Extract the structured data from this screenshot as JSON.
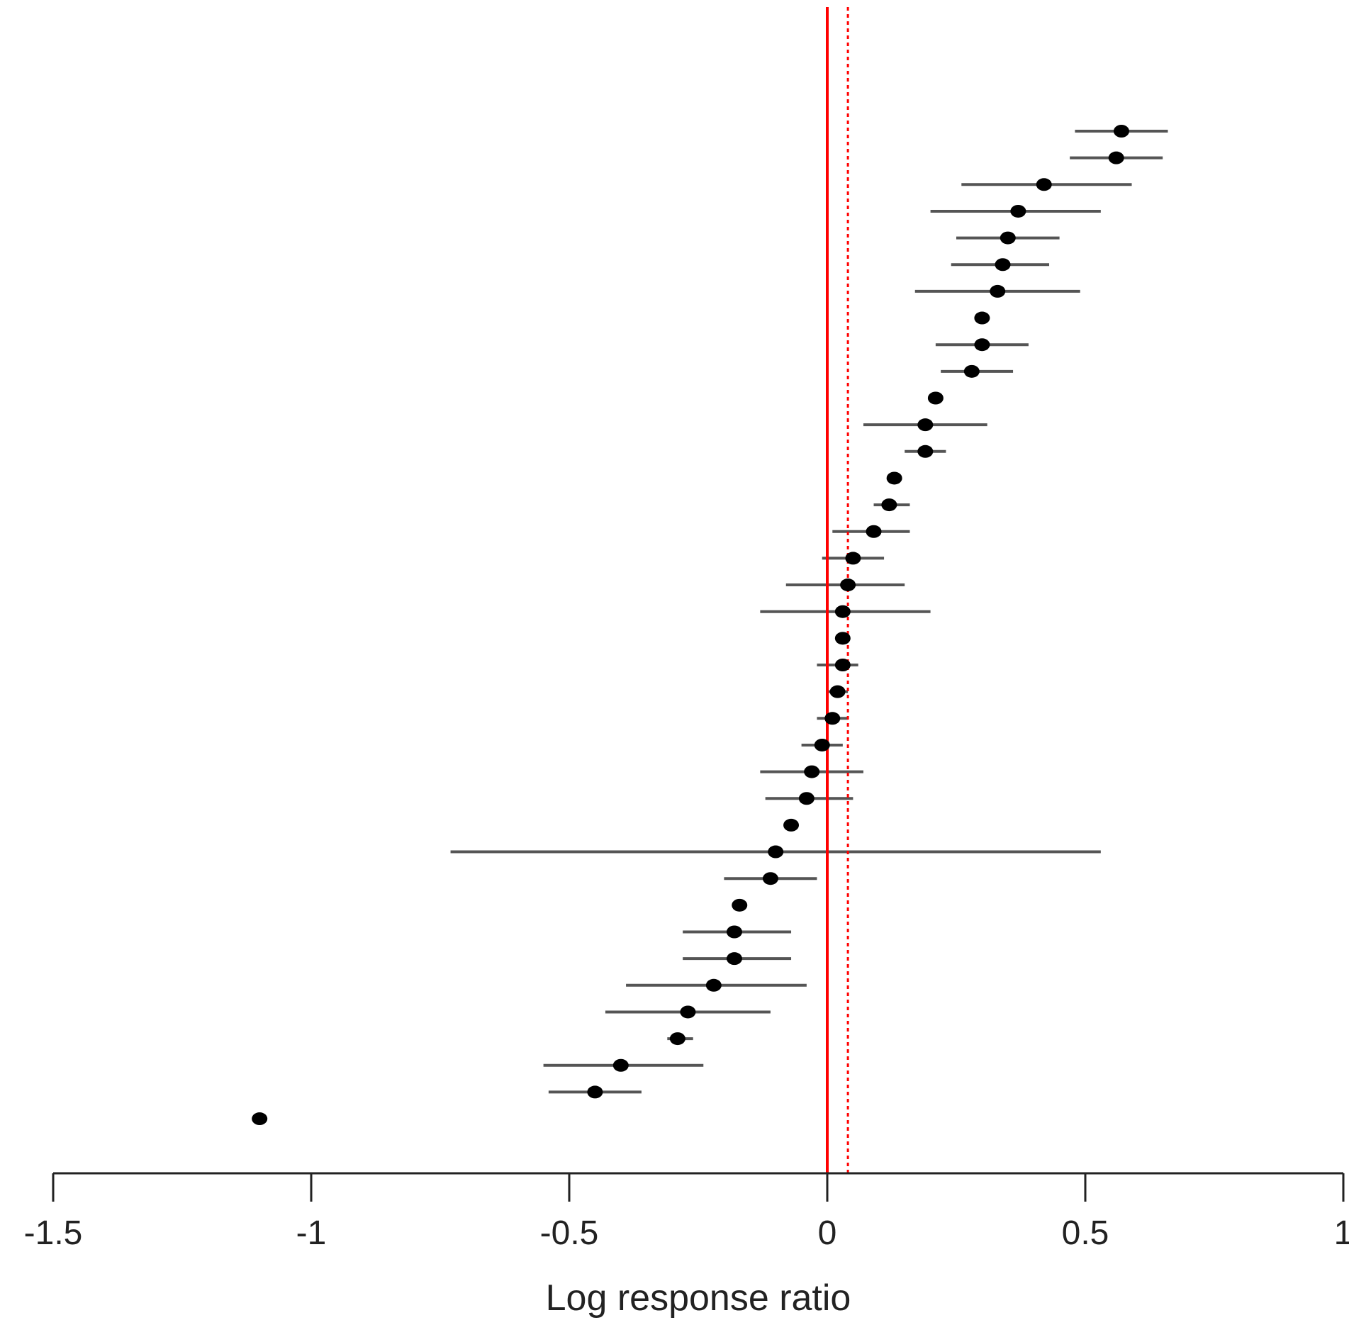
{
  "chart_data": {
    "type": "forest",
    "xlabel": "Log response ratio",
    "ylabel": "",
    "title": "",
    "xlim": [
      -1.5,
      1
    ],
    "x_ticks": [
      -1.5,
      -1,
      -0.5,
      0,
      0.5,
      1
    ],
    "x_tick_labels": [
      "-1.5",
      "-1",
      "-0.5",
      "0",
      "0.5",
      "1"
    ],
    "grid": false,
    "reference_lines": [
      {
        "value": 0,
        "style": "solid",
        "color": "#ff0000"
      },
      {
        "value": 0.04,
        "style": "dotted",
        "color": "#ff0000"
      }
    ],
    "colors": {
      "points": "#000000",
      "ci": "#555555",
      "axis": "#222222",
      "reference": "#ff0000"
    },
    "studies": [
      {
        "estimate": 0.57,
        "ci_low": 0.48,
        "ci_high": 0.66
      },
      {
        "estimate": 0.56,
        "ci_low": 0.47,
        "ci_high": 0.65
      },
      {
        "estimate": 0.42,
        "ci_low": 0.26,
        "ci_high": 0.59
      },
      {
        "estimate": 0.37,
        "ci_low": 0.2,
        "ci_high": 0.53
      },
      {
        "estimate": 0.35,
        "ci_low": 0.25,
        "ci_high": 0.45
      },
      {
        "estimate": 0.34,
        "ci_low": 0.24,
        "ci_high": 0.43
      },
      {
        "estimate": 0.33,
        "ci_low": 0.17,
        "ci_high": 0.49
      },
      {
        "estimate": 0.3,
        "ci_low": 0.29,
        "ci_high": 0.31
      },
      {
        "estimate": 0.3,
        "ci_low": 0.21,
        "ci_high": 0.39
      },
      {
        "estimate": 0.28,
        "ci_low": 0.22,
        "ci_high": 0.36
      },
      {
        "estimate": 0.21,
        "ci_low": 0.2,
        "ci_high": 0.22
      },
      {
        "estimate": 0.19,
        "ci_low": 0.07,
        "ci_high": 0.31
      },
      {
        "estimate": 0.19,
        "ci_low": 0.15,
        "ci_high": 0.23
      },
      {
        "estimate": 0.13,
        "ci_low": 0.12,
        "ci_high": 0.14
      },
      {
        "estimate": 0.12,
        "ci_low": 0.09,
        "ci_high": 0.16
      },
      {
        "estimate": 0.09,
        "ci_low": 0.01,
        "ci_high": 0.16
      },
      {
        "estimate": 0.05,
        "ci_low": -0.01,
        "ci_high": 0.11
      },
      {
        "estimate": 0.04,
        "ci_low": -0.08,
        "ci_high": 0.15
      },
      {
        "estimate": 0.03,
        "ci_low": -0.13,
        "ci_high": 0.2
      },
      {
        "estimate": 0.03,
        "ci_low": 0.02,
        "ci_high": 0.04
      },
      {
        "estimate": 0.03,
        "ci_low": -0.02,
        "ci_high": 0.06
      },
      {
        "estimate": 0.02,
        "ci_low": 0.0,
        "ci_high": 0.04
      },
      {
        "estimate": 0.01,
        "ci_low": -0.02,
        "ci_high": 0.04
      },
      {
        "estimate": -0.01,
        "ci_low": -0.05,
        "ci_high": 0.03
      },
      {
        "estimate": -0.03,
        "ci_low": -0.13,
        "ci_high": 0.07
      },
      {
        "estimate": -0.04,
        "ci_low": -0.12,
        "ci_high": 0.05
      },
      {
        "estimate": -0.07,
        "ci_low": -0.08,
        "ci_high": -0.06
      },
      {
        "estimate": -0.1,
        "ci_low": -0.73,
        "ci_high": 0.53
      },
      {
        "estimate": -0.11,
        "ci_low": -0.2,
        "ci_high": -0.02
      },
      {
        "estimate": -0.17,
        "ci_low": -0.18,
        "ci_high": -0.16
      },
      {
        "estimate": -0.18,
        "ci_low": -0.28,
        "ci_high": -0.07
      },
      {
        "estimate": -0.18,
        "ci_low": -0.28,
        "ci_high": -0.07
      },
      {
        "estimate": -0.22,
        "ci_low": -0.39,
        "ci_high": -0.04
      },
      {
        "estimate": -0.27,
        "ci_low": -0.43,
        "ci_high": -0.11
      },
      {
        "estimate": -0.29,
        "ci_low": -0.31,
        "ci_high": -0.26
      },
      {
        "estimate": -0.4,
        "ci_low": -0.55,
        "ci_high": -0.24
      },
      {
        "estimate": -0.45,
        "ci_low": -0.54,
        "ci_high": -0.36
      },
      {
        "estimate": -1.1,
        "ci_low": -1.11,
        "ci_high": -1.09
      }
    ]
  }
}
